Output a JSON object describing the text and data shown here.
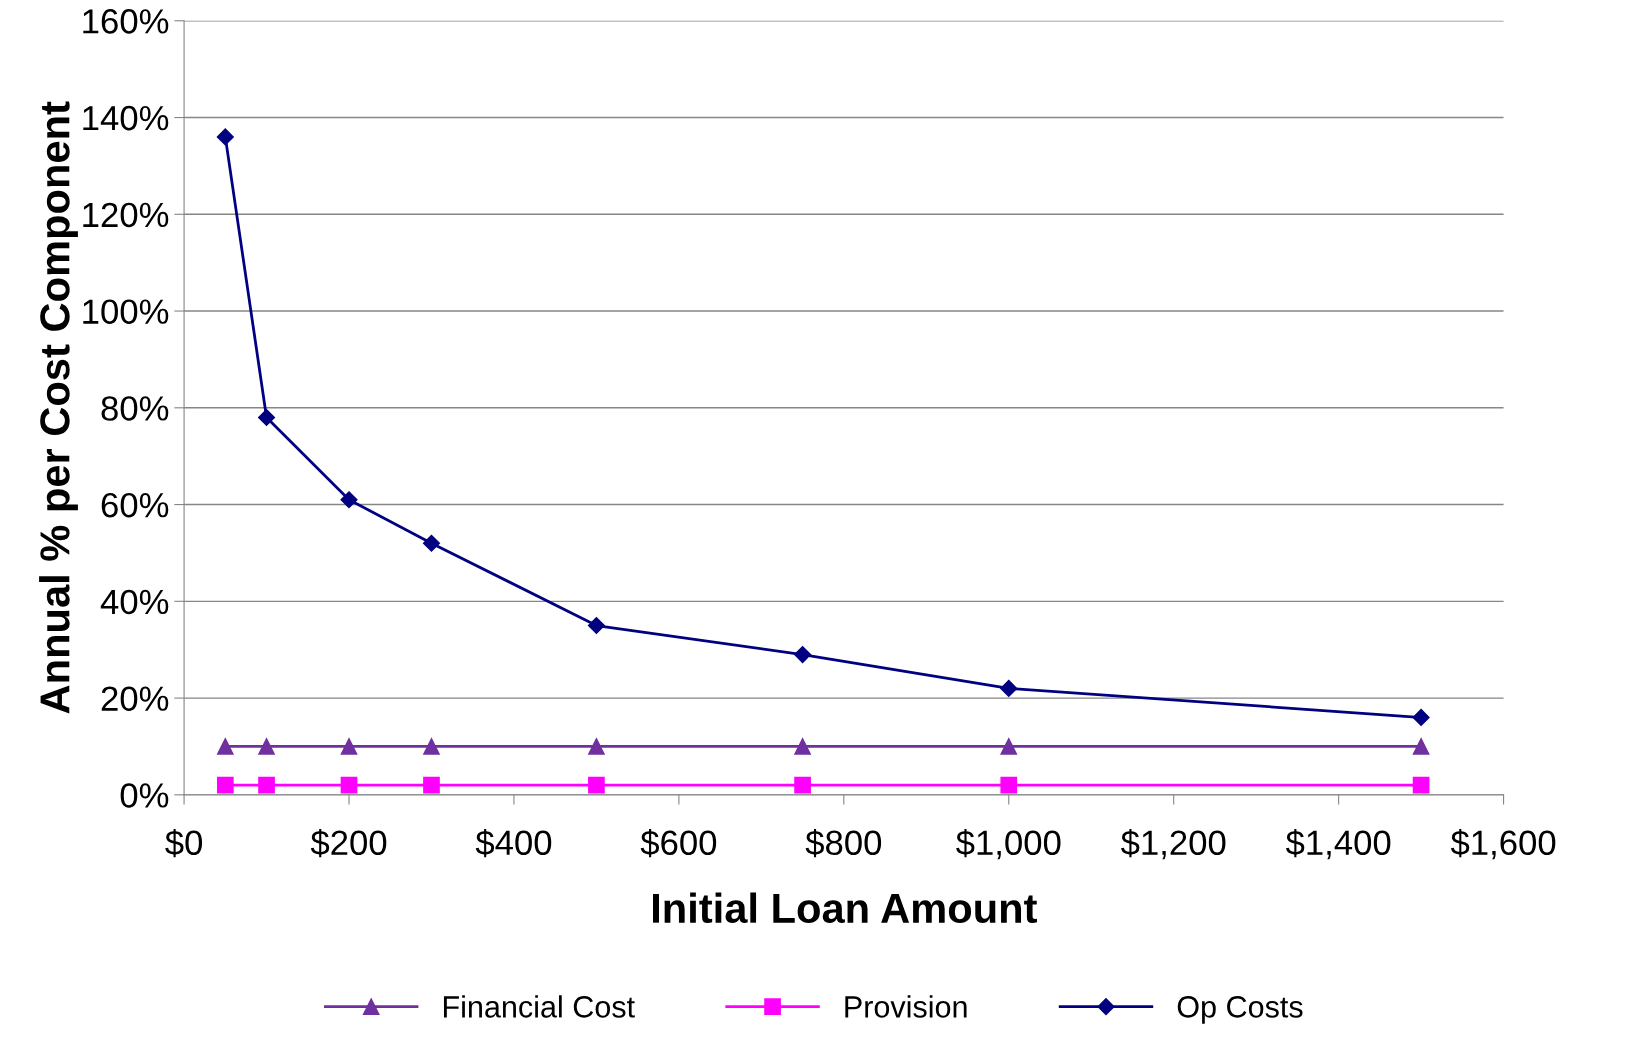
{
  "chart_data": {
    "type": "line",
    "xlabel": "Initial Loan Amount",
    "ylabel": "Annual % per Cost Component",
    "x": [
      50,
      100,
      200,
      300,
      500,
      750,
      1000,
      1500
    ],
    "series": [
      {
        "name": "Financial Cost",
        "color": "#7030a0",
        "marker": "triangle",
        "values": [
          10,
          10,
          10,
          10,
          10,
          10,
          10,
          10
        ]
      },
      {
        "name": "Provision",
        "color": "#ff00ff",
        "marker": "square",
        "values": [
          2,
          2,
          2,
          2,
          2,
          2,
          2,
          2
        ]
      },
      {
        "name": "Op Costs",
        "color": "#000080",
        "marker": "diamond",
        "values": [
          136,
          78,
          61,
          52,
          35,
          29,
          22,
          16
        ]
      }
    ],
    "xlim": [
      0,
      1600
    ],
    "xticks": [
      {
        "value": 0,
        "label": "$0"
      },
      {
        "value": 200,
        "label": "$200"
      },
      {
        "value": 400,
        "label": "$400"
      },
      {
        "value": 600,
        "label": "$600"
      },
      {
        "value": 800,
        "label": "$800"
      },
      {
        "value": 1000,
        "label": "$1,000"
      },
      {
        "value": 1200,
        "label": "$1,200"
      },
      {
        "value": 1400,
        "label": "$1,400"
      },
      {
        "value": 1600,
        "label": "$1,600"
      }
    ],
    "ylim": [
      0,
      160
    ],
    "yticks": [
      {
        "value": 0,
        "label": "0%"
      },
      {
        "value": 20,
        "label": "20%"
      },
      {
        "value": 40,
        "label": "40%"
      },
      {
        "value": 60,
        "label": "60%"
      },
      {
        "value": 80,
        "label": "80%"
      },
      {
        "value": 100,
        "label": "100%"
      },
      {
        "value": 120,
        "label": "120%"
      },
      {
        "value": 140,
        "label": "140%"
      },
      {
        "value": 160,
        "label": "160%"
      }
    ],
    "grid": "y",
    "legend": "bottom",
    "line_style": "solid"
  }
}
